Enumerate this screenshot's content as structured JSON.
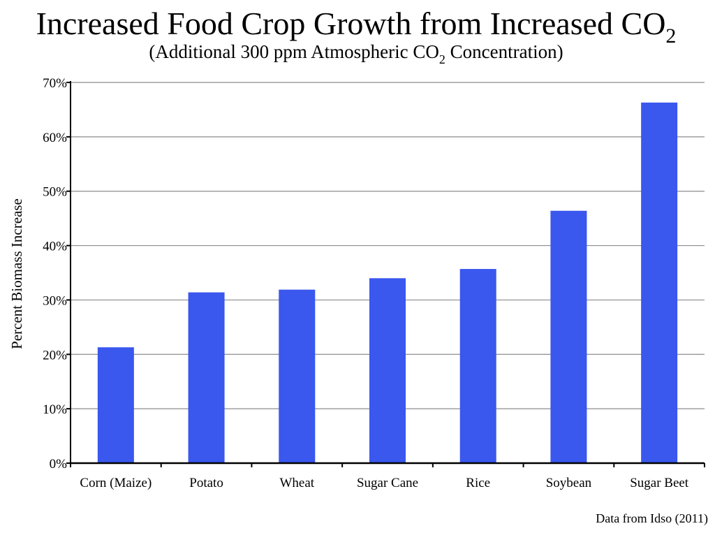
{
  "chart_data": {
    "type": "bar",
    "title": {
      "main": "Increased Food Crop Growth from Increased CO",
      "main_subscript": "2"
    },
    "subtitle": {
      "before": "(Additional 300 ppm Atmospheric CO",
      "subscript": "2",
      "after": " Concentration)"
    },
    "ylabel": "Percent Biomass Increase",
    "xlabel": "",
    "categories": [
      "Corn (Maize)",
      "Potato",
      "Wheat",
      "Sugar Cane",
      "Rice",
      "Soybean",
      "Sugar Beet"
    ],
    "values": [
      21.3,
      31.4,
      31.9,
      34.0,
      35.7,
      46.4,
      66.3
    ],
    "ylim": [
      0,
      70
    ],
    "yticks": [
      0,
      10,
      20,
      30,
      40,
      50,
      60,
      70
    ],
    "ytick_labels": [
      "0%",
      "10%",
      "20%",
      "30%",
      "40%",
      "50%",
      "60%",
      "70%"
    ],
    "grid": true,
    "bar_color": "#3a57ee",
    "gridline_color": "#8c8c8c",
    "source": "Data from Idso (2011)"
  }
}
